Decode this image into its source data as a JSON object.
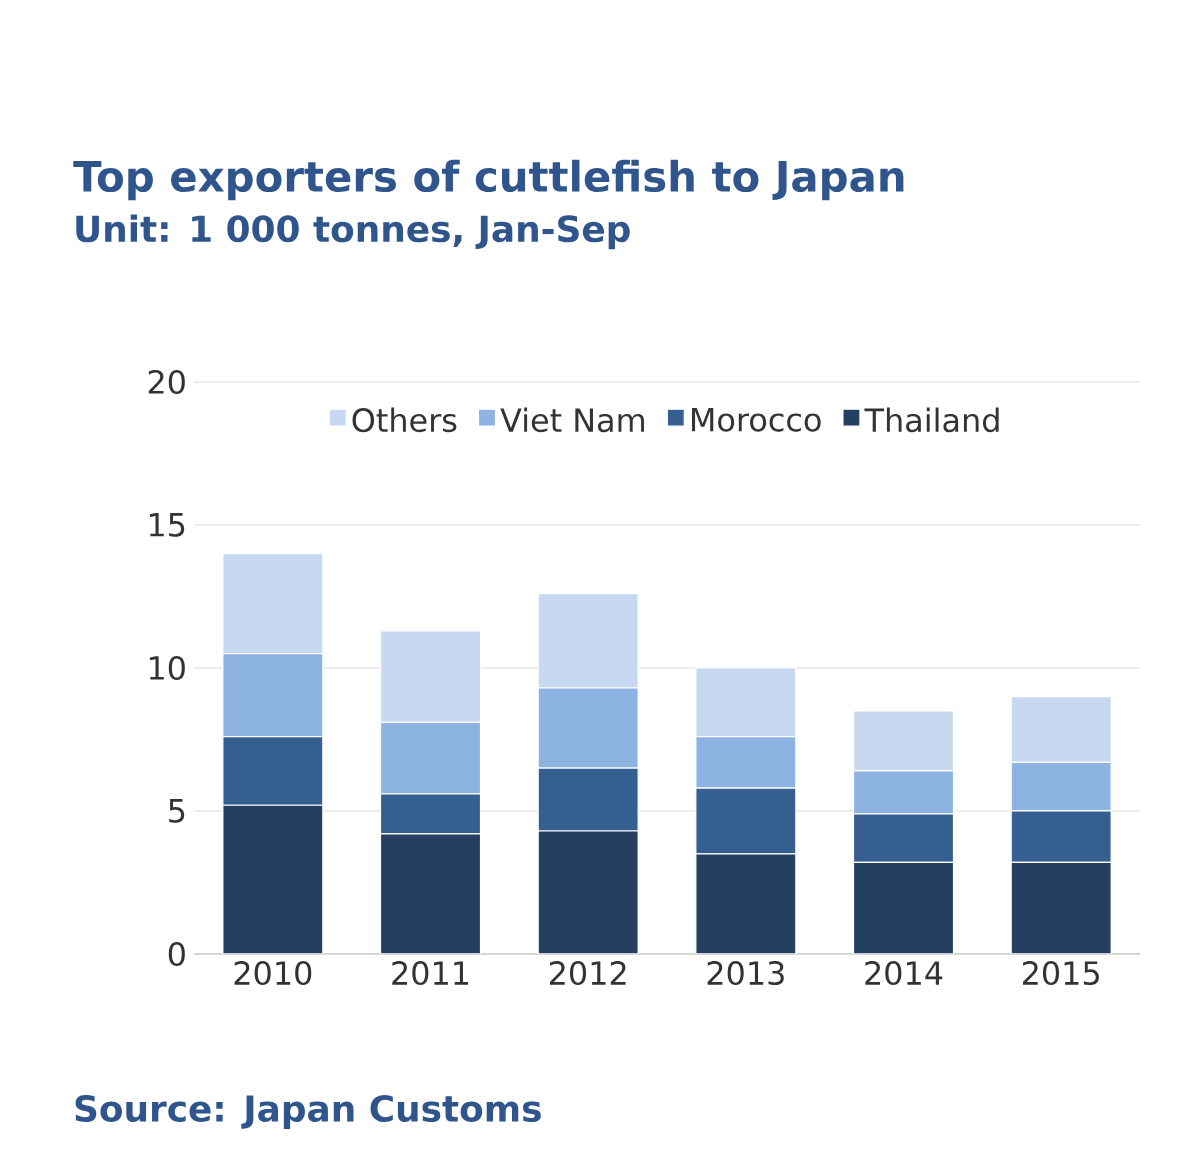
{
  "chart_data": {
    "type": "bar",
    "title": "Top exporters of cuttlefish to Japan",
    "subtitle": "Unit: 1 000 tonnes, Jan-Sep",
    "annotations": [
      "Source: Japan Customs"
    ],
    "categories": [
      "2010",
      "2011",
      "2012",
      "2013",
      "2014",
      "2015"
    ],
    "series": [
      {
        "name": "Thailand",
        "color": "#243f60",
        "values": [
          5.2,
          4.2,
          4.3,
          3.5,
          3.2,
          3.2
        ]
      },
      {
        "name": "Morocco",
        "color": "#355f91",
        "values": [
          2.4,
          1.4,
          2.2,
          2.3,
          1.7,
          1.8
        ]
      },
      {
        "name": "Viet Nam",
        "color": "#8db3e2",
        "values": [
          2.9,
          2.5,
          2.8,
          1.8,
          1.5,
          1.7
        ]
      },
      {
        "name": "Others",
        "color": "#c6d9f1",
        "values": [
          3.5,
          3.2,
          3.3,
          2.4,
          2.1,
          2.3
        ]
      }
    ],
    "stacked": true,
    "ylim": [
      0,
      20
    ],
    "yticks": [
      0,
      5,
      10,
      15,
      20
    ],
    "grid": "y",
    "legend": "top"
  }
}
